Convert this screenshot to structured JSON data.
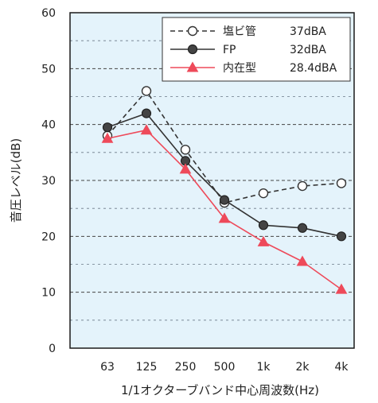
{
  "chart_data": {
    "type": "line",
    "title": "",
    "xlabel": "1/1オクターブバンド中心周波数(Hz)",
    "ylabel": "音圧レベル(dB)",
    "categories": [
      "63",
      "125",
      "250",
      "500",
      "1k",
      "2k",
      "4k"
    ],
    "yticks": [
      "0",
      "10",
      "20",
      "30",
      "40",
      "50",
      "60"
    ],
    "ylim": [
      0,
      60
    ],
    "grid": true,
    "legend_position": "top-right",
    "background_color": "#e4f3fb",
    "series": [
      {
        "name": "塩ビ管",
        "level": "37dBA",
        "values": [
          38,
          46,
          35.5,
          26,
          27.7,
          29,
          29.5
        ],
        "color": "#333333",
        "line_style": "dashed",
        "marker": "open-circle"
      },
      {
        "name": "FP",
        "level": "32dBA",
        "values": [
          39.5,
          42,
          33.5,
          26.5,
          22,
          21.5,
          20
        ],
        "color": "#333333",
        "line_style": "solid",
        "marker": "filled-circle"
      },
      {
        "name": "内在型",
        "level": "28.4dBA",
        "values": [
          37.5,
          39,
          32,
          23.2,
          19,
          15.5,
          10.5
        ],
        "color": "#ee4a5a",
        "line_style": "solid",
        "marker": "filled-triangle"
      }
    ]
  }
}
